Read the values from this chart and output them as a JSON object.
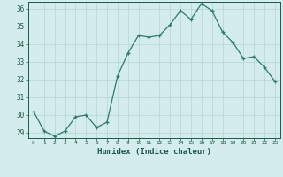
{
  "x": [
    0,
    1,
    2,
    3,
    4,
    5,
    6,
    7,
    8,
    9,
    10,
    11,
    12,
    13,
    14,
    15,
    16,
    17,
    18,
    19,
    20,
    21,
    22,
    23
  ],
  "y": [
    30.2,
    29.1,
    28.8,
    29.1,
    29.9,
    30.0,
    29.3,
    29.6,
    32.2,
    33.5,
    34.5,
    34.4,
    34.5,
    35.1,
    35.9,
    35.4,
    36.3,
    35.9,
    34.7,
    34.1,
    33.2,
    33.3,
    32.7,
    31.9
  ],
  "xlabel": "Humidex (Indice chaleur)",
  "ylim": [
    28.7,
    36.4
  ],
  "xlim": [
    -0.5,
    23.5
  ],
  "yticks": [
    29,
    30,
    31,
    32,
    33,
    34,
    35,
    36
  ],
  "xticks": [
    0,
    1,
    2,
    3,
    4,
    5,
    6,
    7,
    8,
    9,
    10,
    11,
    12,
    13,
    14,
    15,
    16,
    17,
    18,
    19,
    20,
    21,
    22,
    23
  ],
  "line_color": "#2d7a6a",
  "marker_color": "#2d7a6a",
  "bg_color": "#d4edec",
  "grid_color": "#b8d8d6",
  "label_color": "#1a5a4a",
  "tick_color": "#1a5a4a"
}
